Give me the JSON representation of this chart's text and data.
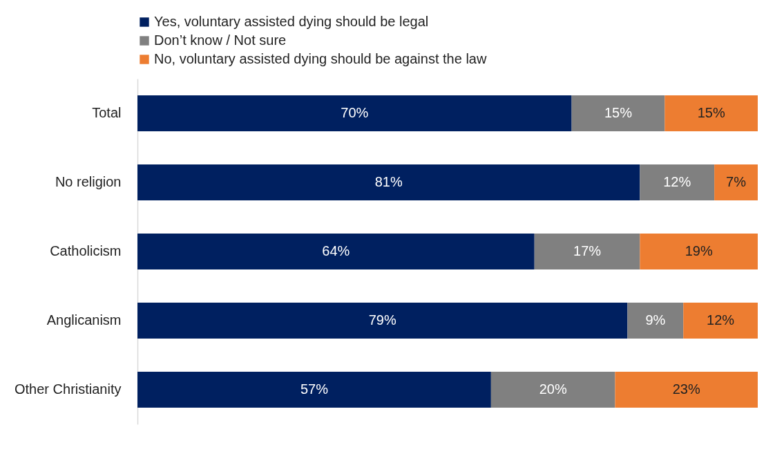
{
  "chart_data": {
    "type": "bar",
    "orientation": "horizontal",
    "stacked": true,
    "categories": [
      "Total",
      "No religion",
      "Catholicism",
      "Anglicanism",
      "Other Christianity"
    ],
    "series": [
      {
        "name": "Yes, voluntary assisted dying should be legal",
        "color": "#002060",
        "values": [
          70,
          81,
          64,
          79,
          57
        ],
        "value_labels": [
          "70%",
          "81%",
          "64%",
          "79%",
          "57%"
        ]
      },
      {
        "name": "Don’t know / Not sure",
        "color": "#808080",
        "values": [
          15,
          12,
          17,
          9,
          20
        ],
        "value_labels": [
          "15%",
          "12%",
          "17%",
          "9%",
          "20%"
        ]
      },
      {
        "name": "No, voluntary assisted dying should be against the law",
        "color": "#ed7d31",
        "values": [
          15,
          7,
          19,
          12,
          23
        ],
        "value_labels": [
          "15%",
          "7%",
          "19%",
          "12%",
          "23%"
        ]
      }
    ],
    "xlim": [
      0,
      100
    ],
    "tick_labels": "y",
    "legend": "top"
  }
}
